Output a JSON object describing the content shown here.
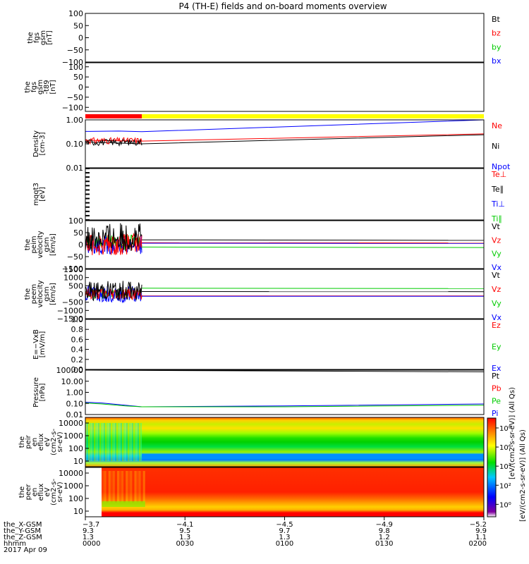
{
  "title": "P4 (TH-E) fields and on-board moments overview",
  "chart_data": [
    {
      "type": "line",
      "ylabel": [
        "the",
        "fgs",
        "gsm",
        "[nT]"
      ],
      "ylim": [
        -100,
        100
      ],
      "yticks": [
        "100",
        "50",
        "0",
        "−50",
        "−100"
      ],
      "legend": [
        {
          "name": "Bt",
          "color": "#000000"
        },
        {
          "name": "bz",
          "color": "#ff0000"
        },
        {
          "name": "by",
          "color": "#00cc00"
        },
        {
          "name": "bx",
          "color": "#0000ff"
        }
      ],
      "series": []
    },
    {
      "type": "line",
      "ylabel": [
        "the",
        "fgs",
        "gsm",
        "-t89",
        "[nT]"
      ],
      "ylim": [
        -120,
        120
      ],
      "yticks": [
        "100",
        "50",
        "0",
        "−50",
        "−100"
      ],
      "series": []
    },
    {
      "type": "line",
      "ylabel": [
        "Density",
        "[cm-3]"
      ],
      "yscale": "log",
      "ylim": [
        0.01,
        1.0
      ],
      "yticks": [
        "1.00",
        "0.10",
        "0.01"
      ],
      "legend": [
        {
          "name": "Ne",
          "color": "#ff0000"
        },
        {
          "name": "Ni",
          "color": "#000000"
        },
        {
          "name": "Npot",
          "color": "#0000ff"
        }
      ],
      "series": [
        {
          "color": "#0000ff",
          "x": [
            0,
            10,
            17,
            120
          ],
          "y": [
            0.33,
            0.34,
            0.32,
            1.0
          ]
        },
        {
          "color": "#ff0000",
          "x": [
            0,
            17,
            120
          ],
          "y": [
            0.14,
            0.13,
            0.26
          ]
        },
        {
          "color": "#000000",
          "x": [
            0,
            17,
            120
          ],
          "y": [
            0.12,
            0.1,
            0.24
          ]
        }
      ]
    },
    {
      "type": "line",
      "ylabel": [
        "mqqt3",
        "[eV]"
      ],
      "legend": [
        {
          "name": "Te⊥",
          "color": "#ff0000"
        },
        {
          "name": "Te∥",
          "color": "#000000"
        },
        {
          "name": "Ti⊥",
          "color": "#0000ff"
        },
        {
          "name": "Ti∥",
          "color": "#00cc00"
        }
      ],
      "series": []
    },
    {
      "type": "line",
      "ylabel": [
        "the",
        "peim",
        "velocity",
        "gsm",
        "[km/s]"
      ],
      "ylim": [
        -100,
        100
      ],
      "yticks": [
        "100",
        "50",
        "0",
        "−50",
        "−100"
      ],
      "legend": [
        {
          "name": "Vt",
          "color": "#000000"
        },
        {
          "name": "Vz",
          "color": "#ff0000"
        },
        {
          "name": "Vy",
          "color": "#00cc00"
        },
        {
          "name": "Vx",
          "color": "#0000ff"
        }
      ],
      "series": [
        {
          "color": "#000000",
          "x": [
            17,
            120
          ],
          "y": [
            20,
            18
          ]
        },
        {
          "color": "#ff0000",
          "x": [
            17,
            120
          ],
          "y": [
            8,
            7
          ]
        },
        {
          "color": "#0000ff",
          "x": [
            17,
            120
          ],
          "y": [
            6,
            5
          ]
        },
        {
          "color": "#00cc00",
          "x": [
            17,
            120
          ],
          "y": [
            -10,
            -12
          ]
        }
      ]
    },
    {
      "type": "line",
      "ylabel": [
        "the",
        "peem",
        "velocity",
        "gsm",
        "[km/s]"
      ],
      "ylim": [
        -1500,
        1500
      ],
      "yticks": [
        "1500",
        "1000",
        "500",
        "0",
        "−500",
        "−1000",
        "−1500"
      ],
      "legend": [
        {
          "name": "Vt",
          "color": "#000000"
        },
        {
          "name": "Vz",
          "color": "#ff0000"
        },
        {
          "name": "Vy",
          "color": "#00cc00"
        },
        {
          "name": "Vx",
          "color": "#0000ff"
        }
      ],
      "series": [
        {
          "color": "#00cc00",
          "x": [
            17,
            120
          ],
          "y": [
            350,
            330
          ]
        },
        {
          "color": "#000000",
          "x": [
            17,
            120
          ],
          "y": [
            150,
            140
          ]
        },
        {
          "color": "#ff0000",
          "x": [
            17,
            120
          ],
          "y": [
            -120,
            -120
          ]
        },
        {
          "color": "#0000ff",
          "x": [
            17,
            120
          ],
          "y": [
            -140,
            -140
          ]
        }
      ]
    },
    {
      "type": "line",
      "ylabel": [
        "E=−VxB",
        "[mV/m]"
      ],
      "ylim": [
        0.0,
        1.0
      ],
      "yticks": [
        "1.0",
        "0.8",
        "0.6",
        "0.4",
        "0.2",
        "0.0"
      ],
      "legend": [
        {
          "name": "Ez",
          "color": "#ff0000"
        },
        {
          "name": "Ey",
          "color": "#00cc00"
        },
        {
          "name": "Ex",
          "color": "#0000ff"
        }
      ],
      "series": []
    },
    {
      "type": "line",
      "ylabel": [
        "Pressure",
        "[nPa]"
      ],
      "yscale": "log",
      "ylim": [
        0.01,
        100
      ],
      "yticks": [
        "100.00",
        "10.00",
        "1.00",
        "0.10",
        "0.01"
      ],
      "legend": [
        {
          "name": "Pt",
          "color": "#000000"
        },
        {
          "name": "Pb",
          "color": "#ff0000"
        },
        {
          "name": "Pe",
          "color": "#00cc00"
        },
        {
          "name": "Pi",
          "color": "#0000ff"
        }
      ],
      "series": [
        {
          "color": "#000000",
          "x": [
            0,
            120
          ],
          "y": [
            100,
            70
          ]
        },
        {
          "color": "#0000ff",
          "x": [
            0,
            5,
            12,
            17,
            60,
            120
          ],
          "y": [
            0.13,
            0.11,
            0.07,
            0.05,
            0.06,
            0.09
          ]
        },
        {
          "color": "#00cc00",
          "x": [
            0,
            5,
            12,
            17,
            60,
            120
          ],
          "y": [
            0.11,
            0.09,
            0.06,
            0.05,
            0.05,
            0.07
          ]
        }
      ]
    },
    {
      "type": "heatmap",
      "ylabel": [
        "the",
        "peir",
        "en",
        "eflux",
        "eV",
        "(cm2-s-",
        "sr-eV)"
      ],
      "yscale": "log",
      "yticks": [
        "10000",
        "1000",
        "100",
        "10"
      ]
    },
    {
      "type": "heatmap",
      "ylabel": [
        "the",
        "peer",
        "en",
        "eflux",
        "eV",
        "(cm2-s-",
        "sr-eV)"
      ],
      "yscale": "log",
      "yticks": [
        "10000",
        "1000",
        "100",
        "10"
      ]
    }
  ],
  "colorbar": {
    "label": "[eV/(cm2-s-sr-eV)] (All Qs)",
    "overlay_label": "[eV/(cm2-s-sr-eV)] (All Qs)",
    "ticks": [
      "10⁸",
      "10⁶",
      "10⁴",
      "10²",
      "10⁰"
    ]
  },
  "xaxis": {
    "range_minutes": [
      0,
      120
    ],
    "rows": [
      {
        "label": "the_X-GSM",
        "values": [
          "−3.7",
          "−4.1",
          "−4.5",
          "−4.9",
          "−5.2"
        ]
      },
      {
        "label": "the_Y-GSM",
        "values": [
          "9.3",
          "9.5",
          "9.7",
          "9.8",
          "9.9"
        ]
      },
      {
        "label": "the_Z-GSM",
        "values": [
          "1.3",
          "1.3",
          "1.3",
          "1.2",
          "1.1"
        ]
      },
      {
        "label": "hhmm",
        "values": [
          "0000",
          "0030",
          "0100",
          "0130",
          "0200"
        ]
      }
    ],
    "date": "2017 Apr 09"
  },
  "mode_bar": [
    {
      "x_end": 17,
      "color": "#ff0000"
    },
    {
      "x_end": 120,
      "color": "#ffff00"
    }
  ]
}
